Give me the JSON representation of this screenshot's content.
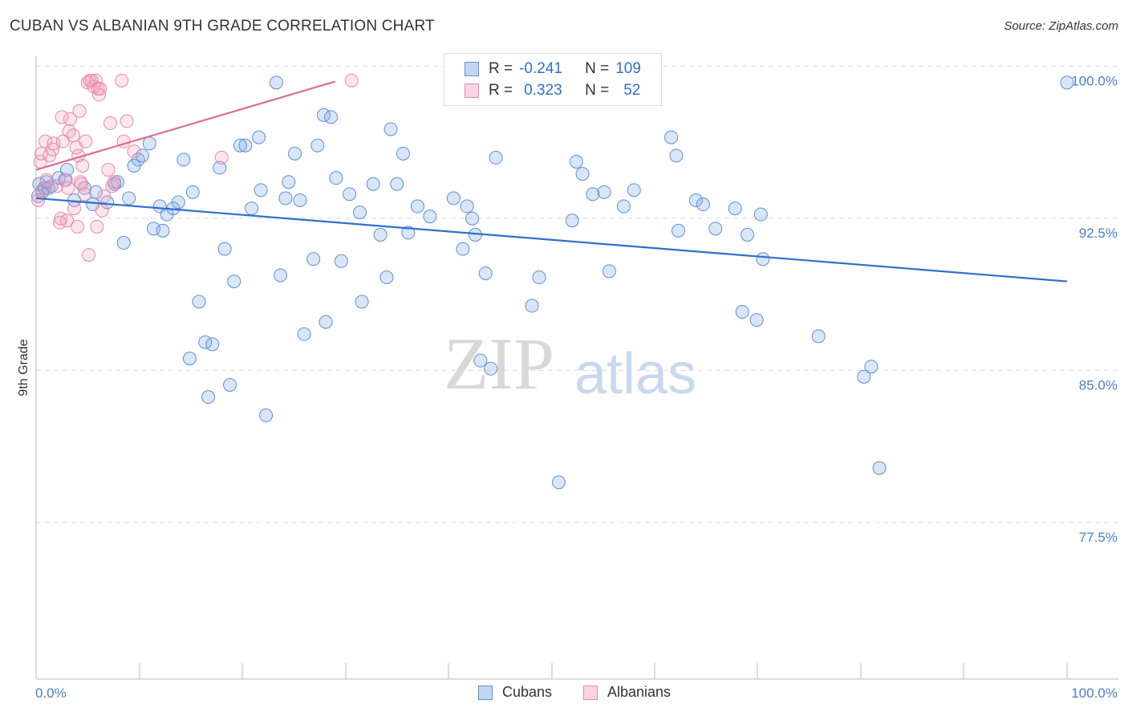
{
  "title": "CUBAN VS ALBANIAN 9TH GRADE CORRELATION CHART",
  "source": "Source: ZipAtlas.com",
  "watermark": {
    "zip": "ZIP",
    "atlas": "atlas"
  },
  "legend": {
    "rows": [
      {
        "r_label": "R =",
        "r_value": "-0.241",
        "n_label": "N =",
        "n_value": "109",
        "color": "#5d8fd6"
      },
      {
        "r_label": "R =",
        "r_value": "0.323",
        "n_label": "N =",
        "n_value": "52",
        "color": "#e58aa8"
      }
    ]
  },
  "bottom_legend": [
    {
      "label": "Cubans",
      "color": "#5d8fd6"
    },
    {
      "label": "Albanians",
      "color": "#e58aa8"
    }
  ],
  "chart_data": {
    "type": "scatter",
    "title": "CUBAN VS ALBANIAN 9TH GRADE CORRELATION CHART",
    "xlabel": "",
    "ylabel": "9th Grade",
    "xlim": [
      0,
      100
    ],
    "ylim": [
      70.5,
      101.2
    ],
    "x_tick_labels": [
      "0.0%",
      "100.0%"
    ],
    "y_ticks": [
      77.5,
      85.0,
      92.5,
      100.0
    ],
    "y_tick_labels": [
      "77.5%",
      "85.0%",
      "92.5%",
      "100.0%"
    ],
    "grid": true,
    "series": [
      {
        "name": "Cubans",
        "color": "#5d8fd6",
        "trend": {
          "x": [
            0,
            100
          ],
          "y": [
            94.2,
            90.1
          ]
        },
        "points": [
          [
            0.3,
            94.9
          ],
          [
            0.6,
            94.5
          ],
          [
            0.8,
            94.7
          ],
          [
            1.2,
            94.7
          ],
          [
            1.5,
            94.8
          ],
          [
            2.2,
            95.2
          ],
          [
            2.8,
            95.1
          ],
          [
            3.0,
            95.6
          ],
          [
            3.7,
            94.1
          ],
          [
            4.7,
            94.7
          ],
          [
            5.5,
            93.9
          ],
          [
            5.8,
            94.5
          ],
          [
            6.9,
            94.0
          ],
          [
            7.6,
            94.9
          ],
          [
            7.9,
            95.0
          ],
          [
            8.5,
            92.0
          ],
          [
            9.0,
            94.2
          ],
          [
            9.5,
            95.8
          ],
          [
            9.9,
            96.1
          ],
          [
            10.3,
            96.3
          ],
          [
            11.0,
            96.9
          ],
          [
            11.4,
            92.7
          ],
          [
            12.0,
            93.8
          ],
          [
            12.3,
            92.6
          ],
          [
            12.7,
            93.4
          ],
          [
            13.3,
            93.7
          ],
          [
            13.8,
            94.0
          ],
          [
            14.3,
            96.1
          ],
          [
            14.9,
            86.3
          ],
          [
            15.2,
            94.5
          ],
          [
            15.8,
            89.1
          ],
          [
            16.4,
            87.1
          ],
          [
            16.7,
            84.4
          ],
          [
            17.1,
            87.0
          ],
          [
            17.8,
            95.7
          ],
          [
            18.3,
            91.7
          ],
          [
            18.8,
            85.0
          ],
          [
            19.2,
            90.1
          ],
          [
            19.8,
            96.8
          ],
          [
            20.3,
            96.8
          ],
          [
            20.9,
            93.7
          ],
          [
            21.6,
            97.2
          ],
          [
            21.8,
            94.6
          ],
          [
            22.3,
            83.5
          ],
          [
            23.3,
            99.9
          ],
          [
            23.7,
            90.4
          ],
          [
            24.2,
            94.2
          ],
          [
            24.5,
            95.0
          ],
          [
            25.1,
            96.4
          ],
          [
            25.6,
            94.1
          ],
          [
            26.0,
            87.5
          ],
          [
            26.9,
            91.2
          ],
          [
            27.3,
            96.8
          ],
          [
            27.9,
            98.3
          ],
          [
            28.1,
            88.1
          ],
          [
            28.6,
            98.2
          ],
          [
            29.1,
            95.2
          ],
          [
            29.6,
            91.1
          ],
          [
            30.4,
            94.4
          ],
          [
            31.4,
            93.5
          ],
          [
            31.6,
            89.1
          ],
          [
            32.7,
            94.9
          ],
          [
            33.4,
            92.4
          ],
          [
            34.0,
            90.3
          ],
          [
            34.4,
            97.6
          ],
          [
            35.0,
            94.9
          ],
          [
            35.6,
            96.4
          ],
          [
            36.1,
            92.5
          ],
          [
            37.0,
            93.8
          ],
          [
            38.2,
            93.3
          ],
          [
            40.5,
            94.2
          ],
          [
            41.4,
            91.7
          ],
          [
            41.8,
            93.8
          ],
          [
            42.3,
            93.2
          ],
          [
            42.6,
            92.4
          ],
          [
            43.1,
            86.2
          ],
          [
            43.6,
            90.5
          ],
          [
            44.1,
            85.8
          ],
          [
            44.6,
            96.2
          ],
          [
            48.1,
            88.9
          ],
          [
            48.8,
            90.3
          ],
          [
            50.7,
            80.2
          ],
          [
            52.0,
            93.1
          ],
          [
            52.4,
            96.0
          ],
          [
            53.0,
            95.4
          ],
          [
            54.0,
            94.4
          ],
          [
            55.1,
            94.5
          ],
          [
            55.6,
            90.6
          ],
          [
            57.0,
            93.8
          ],
          [
            58.0,
            94.6
          ],
          [
            61.6,
            97.2
          ],
          [
            62.1,
            96.3
          ],
          [
            62.3,
            92.6
          ],
          [
            64.0,
            94.1
          ],
          [
            64.7,
            93.9
          ],
          [
            65.9,
            92.7
          ],
          [
            67.8,
            93.7
          ],
          [
            68.5,
            88.6
          ],
          [
            69.0,
            92.4
          ],
          [
            69.9,
            88.2
          ],
          [
            70.3,
            93.4
          ],
          [
            70.5,
            91.2
          ],
          [
            75.9,
            87.4
          ],
          [
            80.3,
            85.4
          ],
          [
            81.0,
            85.9
          ],
          [
            81.8,
            80.9
          ],
          [
            100.0,
            99.9
          ],
          [
            0.2,
            94.3
          ],
          [
            1.0,
            95.0
          ]
        ]
      },
      {
        "name": "Albanians",
        "color": "#e58aa8",
        "trend": {
          "x": [
            0,
            29
          ],
          "y": [
            95.6,
            99.95
          ]
        },
        "points": [
          [
            0.2,
            94.1
          ],
          [
            0.4,
            96.0
          ],
          [
            0.5,
            96.4
          ],
          [
            0.6,
            94.6
          ],
          [
            0.9,
            97.0
          ],
          [
            1.0,
            95.1
          ],
          [
            1.3,
            96.3
          ],
          [
            1.6,
            96.6
          ],
          [
            1.7,
            96.9
          ],
          [
            2.0,
            94.8
          ],
          [
            2.3,
            93.0
          ],
          [
            2.4,
            93.2
          ],
          [
            2.6,
            97.0
          ],
          [
            2.9,
            95.1
          ],
          [
            3.0,
            93.1
          ],
          [
            3.1,
            94.7
          ],
          [
            3.2,
            97.5
          ],
          [
            3.3,
            98.1
          ],
          [
            3.6,
            97.3
          ],
          [
            3.7,
            93.7
          ],
          [
            3.9,
            96.7
          ],
          [
            4.0,
            92.8
          ],
          [
            4.1,
            96.3
          ],
          [
            4.2,
            98.5
          ],
          [
            4.3,
            95.0
          ],
          [
            4.4,
            94.9
          ],
          [
            4.5,
            95.8
          ],
          [
            4.7,
            94.4
          ],
          [
            4.8,
            97.0
          ],
          [
            5.0,
            99.9
          ],
          [
            5.1,
            91.4
          ],
          [
            5.2,
            100.0
          ],
          [
            5.4,
            100.0
          ],
          [
            5.6,
            99.7
          ],
          [
            5.8,
            100.0
          ],
          [
            5.9,
            92.8
          ],
          [
            6.0,
            99.6
          ],
          [
            6.1,
            99.3
          ],
          [
            6.2,
            99.6
          ],
          [
            6.4,
            93.6
          ],
          [
            6.6,
            94.3
          ],
          [
            7.0,
            95.6
          ],
          [
            7.2,
            97.9
          ],
          [
            7.4,
            94.8
          ],
          [
            7.6,
            95.0
          ],
          [
            8.3,
            100.0
          ],
          [
            8.5,
            97.0
          ],
          [
            8.8,
            98.0
          ],
          [
            9.5,
            96.5
          ],
          [
            18.0,
            96.2
          ],
          [
            30.6,
            100.0
          ],
          [
            2.5,
            98.2
          ]
        ]
      }
    ]
  }
}
